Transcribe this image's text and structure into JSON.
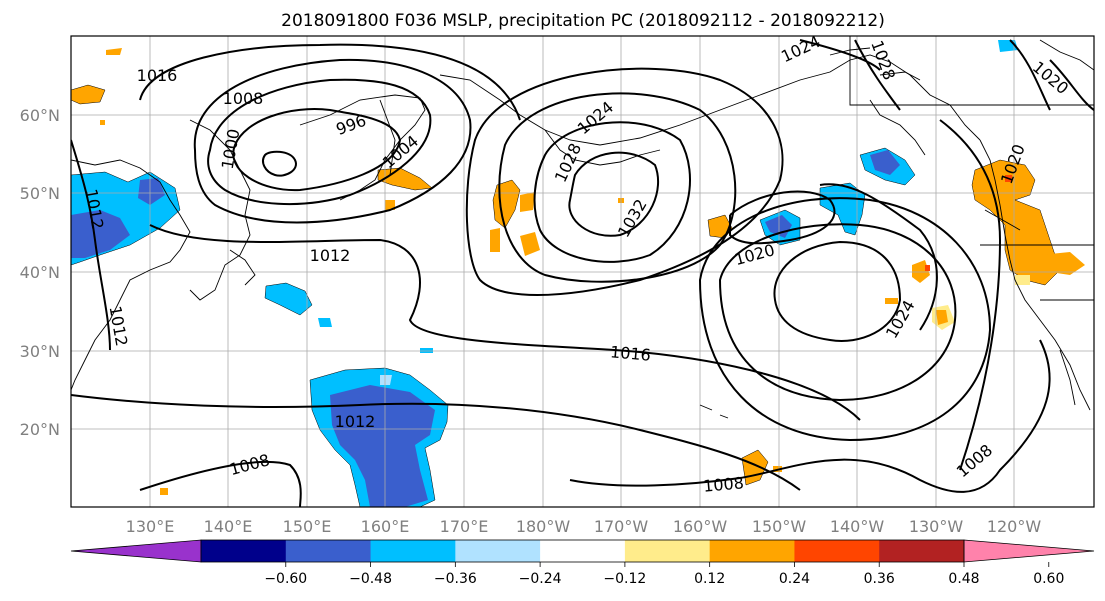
{
  "title": "2018091800 F036 MSLP, precipitation PC (2018092112 - 2018092212)",
  "latitude_labels": [
    "60°N",
    "50°N",
    "40°N",
    "30°N",
    "20°N"
  ],
  "longitude_labels": [
    "130°E",
    "140°E",
    "150°E",
    "160°E",
    "170°E",
    "180°W",
    "170°W",
    "160°W",
    "150°W",
    "140°W",
    "130°W",
    "120°W"
  ],
  "colorbar": {
    "colors": [
      "#9932cc",
      "#00008b",
      "#3a5fcd",
      "#00bfff",
      "#b0e2ff",
      "#ffffff",
      "#ffec8b",
      "#ffa500",
      "#ff4500",
      "#b22222",
      "#ff82ab"
    ],
    "tick_labels": [
      "−0.60",
      "−0.48",
      "−0.36",
      "−0.24",
      "−0.12",
      "0.12",
      "0.24",
      "0.36",
      "0.48",
      "0.60"
    ]
  },
  "pressure_contour_labels": [
    "1016",
    "1008",
    "1000",
    "996",
    "1004",
    "1012",
    "1012",
    "1012",
    "1008",
    "1012",
    "1028",
    "1024",
    "1032",
    "1024",
    "1028",
    "1020",
    "1020",
    "1020",
    "1016",
    "1024",
    "1008",
    "1008"
  ]
}
